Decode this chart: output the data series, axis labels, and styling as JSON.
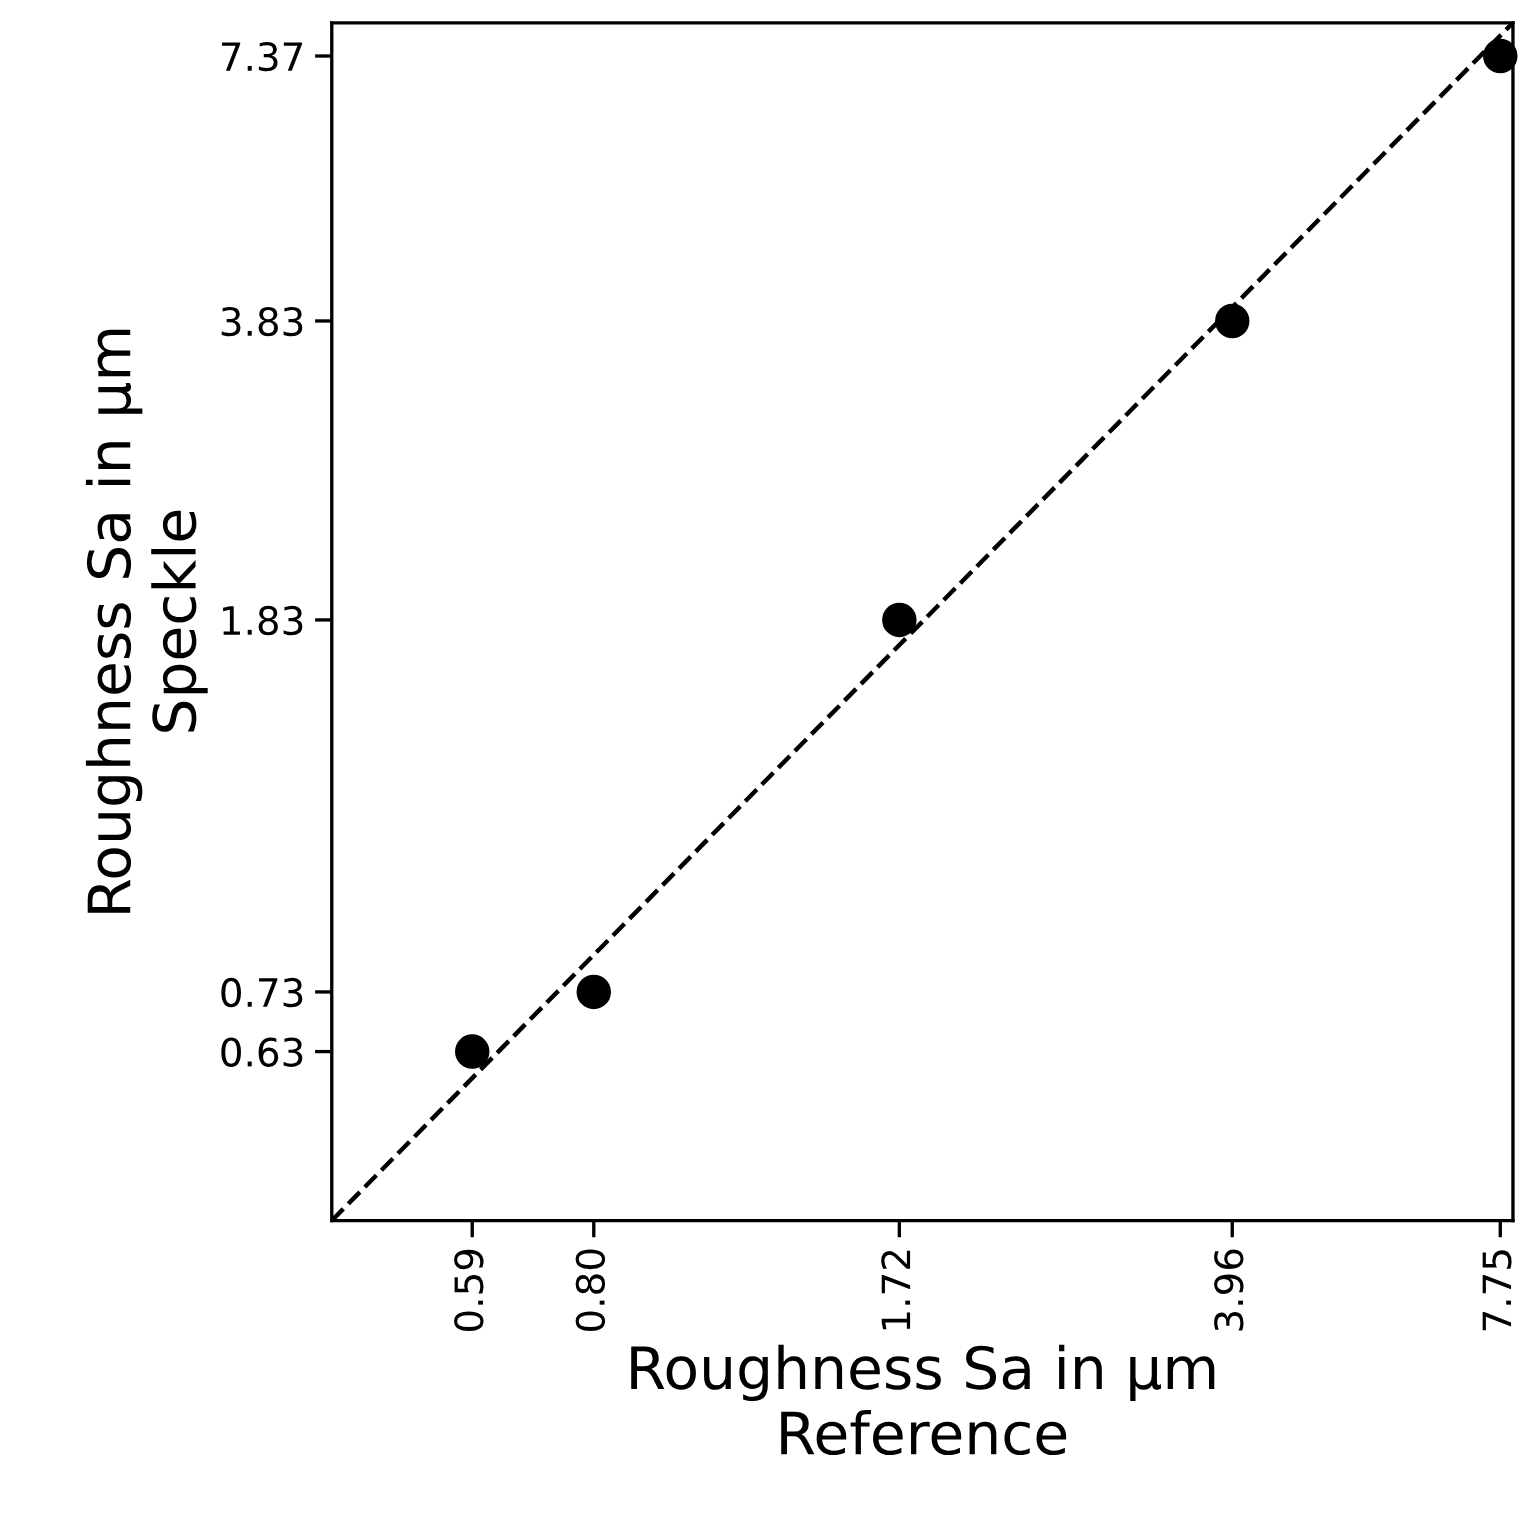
{
  "chart_data": {
    "type": "scatter",
    "xlabel": "Roughness Sa in µm\nReference",
    "ylabel": "Roughness Sa in µm\nSpeckle",
    "log": "xy",
    "marker": "circle",
    "grid": false,
    "xlim": [
      0.415,
      8.0
    ],
    "ylim": [
      0.415,
      8.0
    ],
    "xticks": [
      0.59,
      {
        "value": 0.8,
        "label": "0.80"
      },
      1.72,
      3.96,
      7.75
    ],
    "yticks": [
      0.63,
      0.73,
      1.83,
      3.83,
      7.37
    ],
    "series": [
      {
        "color": "#000000",
        "x": [
          0.59,
          0.8,
          1.72,
          3.96,
          7.75
        ],
        "values": [
          0.63,
          0.73,
          1.83,
          3.83,
          7.37
        ]
      },
      {
        "type": "line",
        "color": "#000000",
        "line_style": "dashed",
        "marker": "none",
        "x": [
          0.415,
          8.0
        ],
        "values": [
          0.415,
          8.0
        ]
      }
    ]
  }
}
